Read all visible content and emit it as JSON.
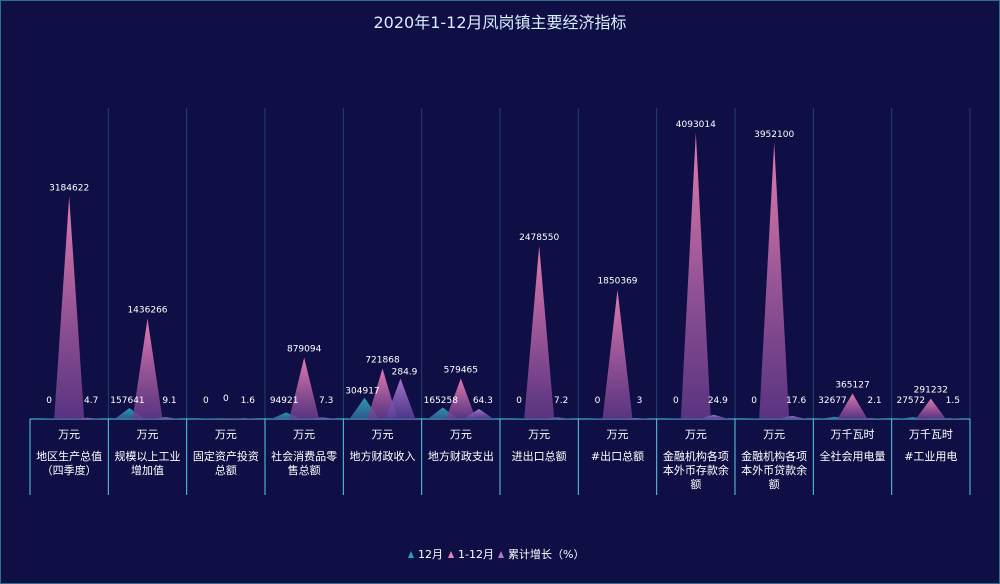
{
  "chart_data": {
    "type": "bar",
    "title": "2020年1-12月凤岗镇主要经济指标",
    "categories": [
      {
        "unit": "万元",
        "label": "地区生产总值\n（四季度）"
      },
      {
        "unit": "万元",
        "label": "规模以上工业\n增加值"
      },
      {
        "unit": "万元",
        "label": "固定资产投资\n总额"
      },
      {
        "unit": "万元",
        "label": "社会消费品零\n售总额"
      },
      {
        "unit": "万元",
        "label": "地方财政收入"
      },
      {
        "unit": "万元",
        "label": "地方财政支出"
      },
      {
        "unit": "万元",
        "label": "进出口总额"
      },
      {
        "unit": "万元",
        "label": "#出口总额"
      },
      {
        "unit": "万元",
        "label": "金融机构各项\n本外币存款余\n额"
      },
      {
        "unit": "万元",
        "label": "金融机构各项\n本外币贷款余\n额"
      },
      {
        "unit": "万千瓦时",
        "label": "全社会用电量"
      },
      {
        "unit": "万千瓦时",
        "label": "#工业用电"
      }
    ],
    "series": [
      {
        "name": "12月",
        "values": [
          0,
          157641,
          0,
          94921,
          304917,
          165258,
          0,
          0,
          0,
          0,
          32677,
          27572
        ]
      },
      {
        "name": "1-12月",
        "values": [
          3184622,
          1436266,
          0,
          879094,
          721868,
          579465,
          2478550,
          1850369,
          4093014,
          3952100,
          365127,
          291232
        ]
      },
      {
        "name": "累计增长（%）",
        "values": [
          "4.7",
          "9.1",
          "1.6",
          "7.3",
          "284.9",
          "64.3",
          "7.2",
          "3",
          "24.9",
          "17.6",
          "2.1",
          "1.5"
        ]
      }
    ],
    "ylim": [
      0,
      4093014
    ],
    "legend_position": "bottom",
    "colors": {
      "s1": "#26a3b8",
      "s2": "#ee82b6",
      "s3": "#b07ad0",
      "divider": "#55cfe8",
      "background": "#0f0f45"
    }
  }
}
